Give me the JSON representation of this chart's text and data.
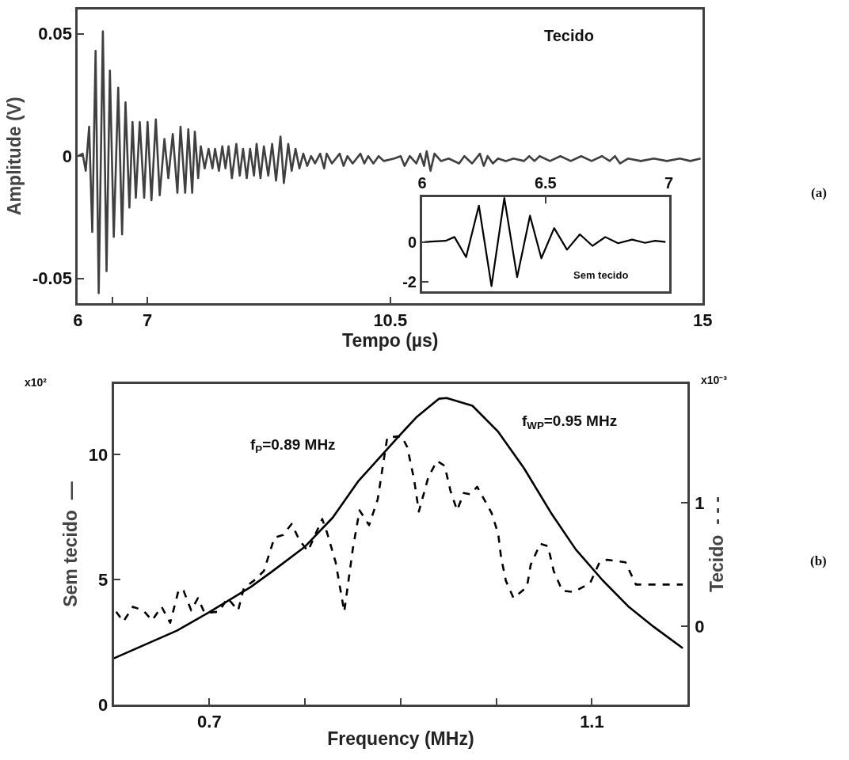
{
  "chart_data": [
    {
      "type": "line",
      "xlabel": "Tempo (µs)",
      "ylabel": "Amplitude (V)",
      "xlim": [
        6,
        15
      ],
      "xticks": [
        6,
        {
          "value": 6.5,
          "label": null
        },
        7,
        10.5,
        15
      ],
      "ylim": [
        -0.06,
        0.06
      ],
      "yticks": [
        -0.05,
        0,
        0.05
      ],
      "annotations": [
        "Tecido",
        "(a)"
      ],
      "series": [
        {
          "color": "#404040",
          "line_style": "solid",
          "x": [
            6.0,
            6.067,
            6.112,
            6.161,
            6.206,
            6.254,
            6.299,
            6.359,
            6.412,
            6.46,
            6.516,
            6.58,
            6.636,
            6.685,
            6.741,
            6.786,
            6.834,
            6.89,
            6.954,
            7.003,
            7.059,
            7.122,
            7.178,
            7.246,
            7.302,
            7.366,
            7.433,
            7.478,
            7.545,
            7.59,
            7.646,
            7.684,
            7.732,
            7.77,
            7.826,
            7.882,
            7.938,
            7.975,
            8.031,
            8.08,
            8.125,
            8.17,
            8.218,
            8.282,
            8.331,
            8.379,
            8.432,
            8.48,
            8.536,
            8.574,
            8.63,
            8.679,
            8.742,
            8.798,
            8.854,
            8.918,
            8.967,
            9.03,
            9.079,
            9.135,
            9.191,
            9.247,
            9.303,
            9.359,
            9.416,
            9.49,
            9.547,
            9.584,
            9.659,
            9.771,
            9.827,
            9.883,
            9.958,
            10.07,
            10.126,
            10.183,
            10.257,
            10.332,
            10.407,
            10.557,
            10.65,
            10.706,
            10.781,
            10.875,
            10.931,
            10.987,
            11.024,
            11.08,
            11.137,
            11.23,
            11.342,
            11.492,
            11.567,
            11.679,
            11.791,
            11.847,
            11.903,
            11.978,
            12.053,
            12.165,
            12.277,
            12.427,
            12.502,
            12.577,
            12.652,
            12.801,
            12.951,
            13.1,
            13.25,
            13.4,
            13.55,
            13.662,
            13.737,
            13.811,
            13.924,
            14.111,
            14.298,
            14.485,
            14.672,
            14.822,
            14.971
          ],
          "values": [
            0.0,
            0.001,
            -0.006,
            0.012,
            -0.031,
            0.043,
            -0.056,
            0.051,
            -0.047,
            0.035,
            -0.033,
            0.028,
            -0.032,
            0.022,
            -0.021,
            0.014,
            -0.017,
            0.014,
            -0.017,
            0.014,
            -0.018,
            0.015,
            -0.016,
            0.007,
            -0.009,
            0.009,
            -0.015,
            0.012,
            -0.015,
            0.011,
            -0.015,
            0.01,
            -0.009,
            0.004,
            -0.005,
            0.003,
            -0.005,
            0.003,
            -0.006,
            0.004,
            -0.005,
            0.004,
            -0.009,
            0.005,
            -0.008,
            0.003,
            -0.009,
            0.003,
            -0.008,
            0.005,
            -0.009,
            0.004,
            -0.008,
            0.005,
            -0.01,
            0.008,
            -0.011,
            0.005,
            -0.006,
            0.003,
            -0.005,
            0.001,
            -0.004,
            0.0,
            -0.003,
            0.001,
            -0.005,
            0.001,
            -0.003,
            0.001,
            -0.004,
            0.0,
            -0.003,
            0.001,
            -0.003,
            0.0,
            -0.003,
            0.0,
            -0.002,
            -0.001,
            0.0,
            -0.004,
            0.0,
            -0.003,
            0.001,
            -0.004,
            0.002,
            -0.006,
            0.001,
            -0.002,
            -0.001,
            -0.003,
            0.0,
            -0.003,
            0.001,
            -0.004,
            0.0,
            -0.003,
            -0.001,
            -0.002,
            -0.001,
            -0.002,
            0.0,
            -0.002,
            0.0,
            -0.002,
            0.0,
            -0.002,
            0.0,
            -0.002,
            0.0,
            -0.002,
            0.0,
            -0.003,
            -0.001,
            -0.002,
            -0.001,
            -0.002,
            -0.001,
            -0.002,
            -0.001
          ]
        }
      ]
    },
    {
      "type": "line",
      "xlim": [
        6,
        7
      ],
      "xticks": [
        6,
        6.5,
        7
      ],
      "ylim": [
        -2.45,
        2.25
      ],
      "yticks": [
        -2,
        0
      ],
      "annotations": [
        "Sem tecido"
      ],
      "series": [
        {
          "color": "#000000",
          "line_style": "solid",
          "x": [
            6.01,
            6.095,
            6.131,
            6.178,
            6.23,
            6.281,
            6.333,
            6.385,
            6.437,
            6.483,
            6.535,
            6.587,
            6.639,
            6.69,
            6.742,
            6.794,
            6.851,
            6.903,
            6.944,
            6.986
          ],
          "values": [
            0,
            0.06,
            0.25,
            -0.75,
            1.81,
            -2.19,
            2.19,
            -1.75,
            1.31,
            -0.81,
            0.69,
            -0.38,
            0.38,
            -0.19,
            0.25,
            -0.06,
            0.12,
            -0.04,
            0.06,
            0
          ]
        }
      ]
    },
    {
      "type": "line",
      "xlabel": "Frequency (MHz)",
      "ylabel": "Sem tecido  —",
      "y2label": "Tecido  - - -",
      "xlim": [
        0.6,
        1.2
      ],
      "xticks": [
        0.7,
        {
          "value": 0.8,
          "label": null
        },
        {
          "value": 0.9,
          "label": null
        },
        {
          "value": 1.0,
          "label": null
        },
        1.1
      ],
      "ylim": [
        0,
        12.8
      ],
      "yticks": [
        0,
        5,
        10
      ],
      "y2lim": [
        -0.63,
        1.96
      ],
      "y2ticks": [
        0,
        1
      ],
      "annotations": [
        "x10²",
        "x10⁻³",
        "f$_{P}$=0.89 MHz",
        "f$_{WP}$=0.95 MHz",
        "(b)"
      ],
      "series": [
        {
          "color": "#000000",
          "line_style": "solid",
          "x": [
            0.6,
            0.666,
            0.7,
            0.743,
            0.765,
            0.8,
            0.829,
            0.856,
            0.882,
            0.898,
            0.917,
            0.94,
            0.948,
            0.975,
            1.002,
            1.029,
            1.057,
            1.083,
            1.111,
            1.138,
            1.165,
            1.195
          ],
          "values": [
            1.84,
            2.95,
            3.69,
            4.69,
            5.3,
            6.31,
            7.47,
            8.94,
            10.04,
            10.72,
            11.5,
            12.22,
            12.25,
            11.94,
            10.9,
            9.44,
            7.67,
            6.2,
            4.97,
            3.92,
            3.09,
            2.25
          ]
        },
        {
          "color": "#000000",
          "line_style": "dashed",
          "axis": "y2",
          "x": [
            0.6025,
            0.61,
            0.62,
            0.631,
            0.64,
            0.65,
            0.659,
            0.668,
            0.673,
            0.681,
            0.688,
            0.695,
            0.71,
            0.719,
            0.73,
            0.736,
            0.748,
            0.757,
            0.768,
            0.777,
            0.786,
            0.794,
            0.803,
            0.818,
            0.823,
            0.832,
            0.841,
            0.85,
            0.857,
            0.867,
            0.876,
            0.886,
            0.901,
            0.907,
            0.914,
            0.919,
            0.929,
            0.938,
            0.946,
            0.952,
            0.959,
            0.966,
            0.973,
            0.98,
            0.985,
            0.995,
            1.002,
            1.005,
            1.01,
            1.018,
            1.032,
            1.036,
            1.046,
            1.054,
            1.06,
            1.069,
            1.081,
            1.098,
            1.108,
            1.116,
            1.135,
            1.146,
            1.167,
            1.195
          ],
          "values": [
            0.12,
            0.04,
            0.16,
            0.13,
            0.05,
            0.16,
            0.03,
            0.3,
            0.29,
            0.13,
            0.23,
            0.11,
            0.12,
            0.23,
            0.13,
            0.31,
            0.38,
            0.45,
            0.72,
            0.74,
            0.83,
            0.7,
            0.61,
            0.87,
            0.76,
            0.52,
            0.12,
            0.63,
            0.94,
            0.82,
            1.03,
            1.53,
            1.54,
            1.45,
            1.19,
            0.93,
            1.21,
            1.34,
            1.3,
            1.1,
            0.94,
            1.08,
            1.07,
            1.13,
            1.06,
            0.92,
            0.75,
            0.56,
            0.37,
            0.23,
            0.32,
            0.5,
            0.67,
            0.65,
            0.45,
            0.29,
            0.28,
            0.35,
            0.52,
            0.54,
            0.52,
            0.34,
            0.34,
            0.34
          ]
        }
      ]
    }
  ]
}
